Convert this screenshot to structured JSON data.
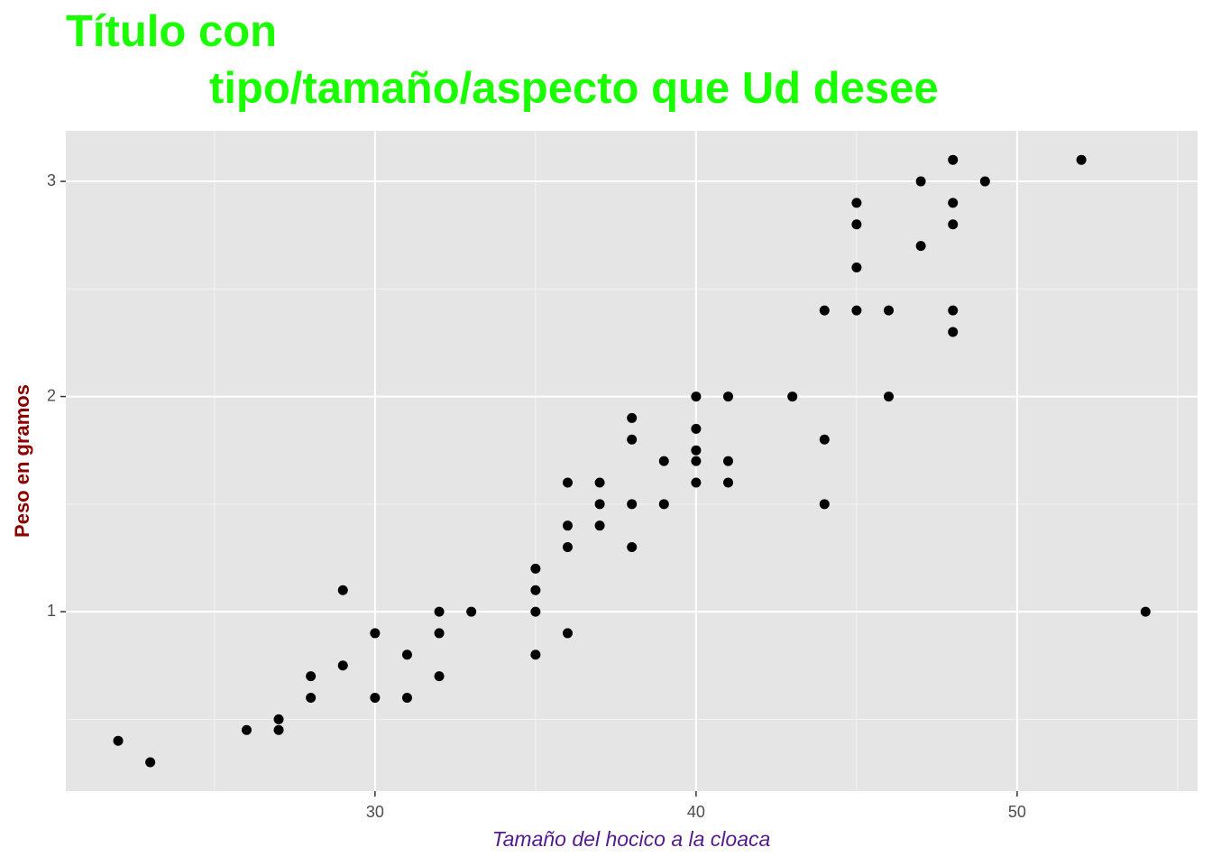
{
  "chart_data": {
    "type": "scatter",
    "title": [
      "Título con",
      "tipo/tamaño/aspecto que Ud desee"
    ],
    "x_label": "Tamaño del hocico a la cloaca",
    "y_label": "Peso en gramos",
    "color": "#000000",
    "grid": true,
    "minor_grid": true,
    "xlim": [
      20.37,
      55.62
    ],
    "ylim": [
      0.166,
      3.235
    ],
    "xticks": [
      30,
      40,
      50
    ],
    "yticks": [
      1,
      2,
      3
    ],
    "x": [
      22,
      23,
      26,
      27,
      27,
      28,
      28,
      29,
      29,
      30,
      30,
      31,
      31,
      32,
      32,
      32,
      33,
      35,
      35,
      35,
      35,
      36,
      36,
      36,
      36,
      37,
      37,
      37,
      38,
      38,
      38,
      38,
      39,
      39,
      40,
      40,
      40,
      40,
      40,
      41,
      41,
      41,
      43,
      44,
      44,
      44,
      45,
      45,
      45,
      45,
      46,
      46,
      47,
      47,
      48,
      48,
      48,
      48,
      48,
      49,
      52,
      54
    ],
    "values": [
      0.4,
      0.3,
      0.45,
      0.5,
      0.45,
      0.7,
      0.6,
      1.1,
      0.75,
      0.9,
      0.6,
      0.8,
      0.6,
      1.0,
      0.9,
      0.7,
      1.0,
      1.2,
      1.1,
      1.0,
      0.8,
      1.6,
      1.4,
      1.3,
      0.9,
      1.6,
      1.5,
      1.4,
      1.9,
      1.8,
      1.5,
      1.3,
      1.7,
      1.5,
      2.0,
      1.85,
      1.75,
      1.7,
      1.6,
      2.0,
      1.7,
      1.6,
      2.0,
      2.4,
      1.8,
      1.5,
      2.9,
      2.8,
      2.6,
      2.4,
      2.4,
      2.0,
      3.0,
      2.7,
      3.1,
      2.9,
      2.8,
      2.4,
      2.3,
      3.0,
      3.1,
      1.0
    ]
  }
}
